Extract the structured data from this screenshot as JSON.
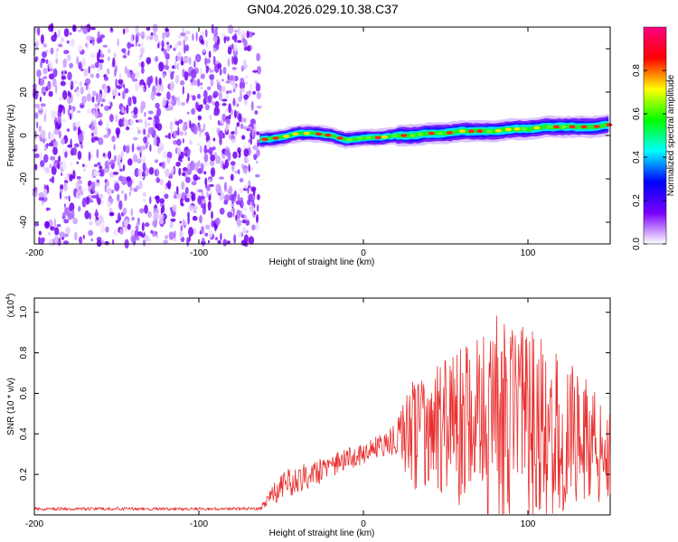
{
  "title": "GN04.2026.029.10.38.C37",
  "colors": {
    "signal": "#e8302f",
    "frame": "#000000"
  },
  "chart_data": [
    {
      "type": "heatmap",
      "title": "GN04.2026.029.10.38.C37",
      "xlabel": "Height of straight line (km)",
      "ylabel": "Frequency (Hz)",
      "xlim": [
        -200,
        150
      ],
      "ylim": [
        -50,
        50
      ],
      "x_ticks": [
        -200,
        -100,
        0,
        100
      ],
      "x_tick_labels": [
        "-200",
        "-100",
        "0",
        "100"
      ],
      "y_ticks": [
        -40,
        -20,
        0,
        20,
        40
      ],
      "y_tick_labels": [
        "-40",
        "-20",
        "0",
        "20",
        "40"
      ],
      "noise_region_x": [
        -200,
        -63
      ],
      "ridge": {
        "x": [
          -63,
          -50,
          -40,
          -30,
          -20,
          -10,
          0,
          10,
          20,
          30,
          40,
          50,
          60,
          70,
          80,
          90,
          100,
          110,
          120,
          130,
          140,
          150
        ],
        "frequency": [
          -2,
          -1,
          1,
          1,
          0,
          -2,
          -1,
          -1,
          0,
          0,
          1,
          1,
          2,
          2,
          2,
          3,
          3,
          4,
          4,
          4,
          4,
          5
        ]
      },
      "colorbar": {
        "label": "Normalized spectral amplitude",
        "range": [
          0,
          1
        ],
        "ticks": [
          0.0,
          0.2,
          0.4,
          0.6,
          0.8
        ],
        "tick_labels": [
          "0.0",
          "0.2",
          "0.4",
          "0.6",
          "0.8"
        ],
        "colormap": [
          "#ffffff",
          "#7a00ff",
          "#0000ff",
          "#00ffff",
          "#00ff00",
          "#ffff00",
          "#ff0000",
          "#ff0080"
        ]
      }
    },
    {
      "type": "line",
      "xlabel": "Height of straight line (km)",
      "ylabel": "SNR (10 * v/v)",
      "y_multiplier": "(x10",
      "y_multiplier_exp": "4",
      "y_multiplier_close": ")",
      "xlim": [
        -200,
        150
      ],
      "ylim": [
        0,
        1.07
      ],
      "x_ticks": [
        -200,
        -100,
        0,
        100
      ],
      "x_tick_labels": [
        "-200",
        "-100",
        "0",
        "100"
      ],
      "y_ticks": [
        0.2,
        0.4,
        0.6,
        0.8,
        1.0
      ],
      "y_tick_labels": [
        "0.2",
        "0.4",
        "0.6",
        "0.8",
        "1.0"
      ],
      "series": [
        {
          "name": "SNR",
          "envelope_x": [
            -200,
            -150,
            -100,
            -63,
            -55,
            -50,
            -40,
            -30,
            -20,
            -10,
            0,
            10,
            20,
            22,
            25,
            30,
            40,
            50,
            60,
            70,
            80,
            85,
            90,
            100,
            110,
            120,
            130,
            140,
            150
          ],
          "envelope_mid": [
            0.03,
            0.03,
            0.03,
            0.03,
            0.1,
            0.14,
            0.18,
            0.21,
            0.24,
            0.27,
            0.3,
            0.34,
            0.38,
            0.42,
            0.4,
            0.38,
            0.4,
            0.42,
            0.44,
            0.45,
            0.47,
            0.48,
            0.46,
            0.44,
            0.42,
            0.4,
            0.38,
            0.36,
            0.35
          ],
          "envelope_amp": [
            0.008,
            0.008,
            0.008,
            0.008,
            0.05,
            0.07,
            0.07,
            0.07,
            0.06,
            0.06,
            0.05,
            0.06,
            0.08,
            0.09,
            0.2,
            0.28,
            0.33,
            0.36,
            0.4,
            0.45,
            0.52,
            0.58,
            0.5,
            0.48,
            0.45,
            0.4,
            0.33,
            0.3,
            0.28
          ]
        }
      ]
    }
  ]
}
